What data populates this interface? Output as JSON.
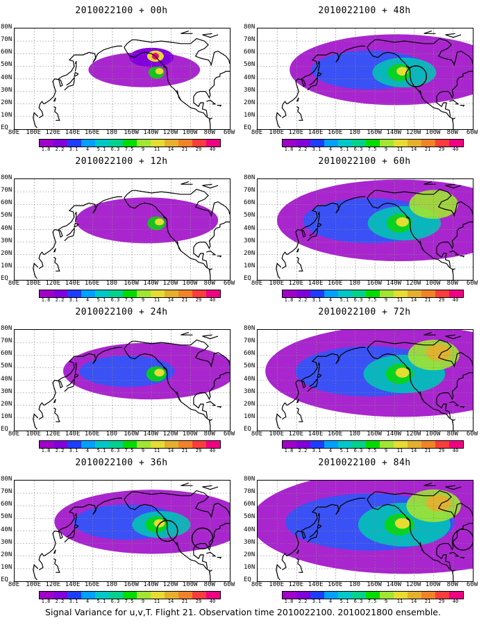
{
  "caption": "Signal Variance for u,v,T. Flight 21. Observation time 2010022100. 2010021800 ensemble.",
  "panels": [
    {
      "title": "2010022100 + 00h",
      "level": 0.12,
      "circles": []
    },
    {
      "title": "2010022100 + 48h",
      "level": 0.55,
      "circles": [
        {
          "lon": -118,
          "lat": 42
        }
      ]
    },
    {
      "title": "2010022100 + 12h",
      "level": 0.25,
      "circles": []
    },
    {
      "title": "2010022100 + 60h",
      "level": 0.68,
      "circles": []
    },
    {
      "title": "2010022100 + 24h",
      "level": 0.38,
      "circles": []
    },
    {
      "title": "2010022100 + 72h",
      "level": 0.8,
      "circles": []
    },
    {
      "title": "2010022100 + 36h",
      "level": 0.47,
      "circles": [
        {
          "lon": -124,
          "lat": 40
        },
        {
          "lon": -88,
          "lat": 34
        }
      ]
    },
    {
      "title": "2010022100 + 84h",
      "level": 0.95,
      "circles": [
        {
          "lon": -70,
          "lat": 33
        }
      ]
    }
  ],
  "latitude_labels": [
    "80N",
    "70N",
    "60N",
    "50N",
    "40N",
    "30N",
    "20N",
    "10N",
    "EQ"
  ],
  "longitude_labels": [
    "80E",
    "100E",
    "120E",
    "140E",
    "160E",
    "180",
    "160W",
    "140W",
    "120W",
    "100W",
    "80W",
    "60W"
  ],
  "colorbar": {
    "labels": [
      "1.8",
      "2.2",
      "3.1",
      "4",
      "5.1",
      "6.3",
      "7.5",
      "9",
      "11",
      "14",
      "21",
      "29",
      "40"
    ],
    "colors": [
      "#a000c8",
      "#8200dc",
      "#1e3cff",
      "#00a0ff",
      "#00c8c8",
      "#00d28c",
      "#00dc00",
      "#a0e632",
      "#e6dc32",
      "#e6af2d",
      "#f08228",
      "#fa3c3c",
      "#f00082"
    ]
  }
}
